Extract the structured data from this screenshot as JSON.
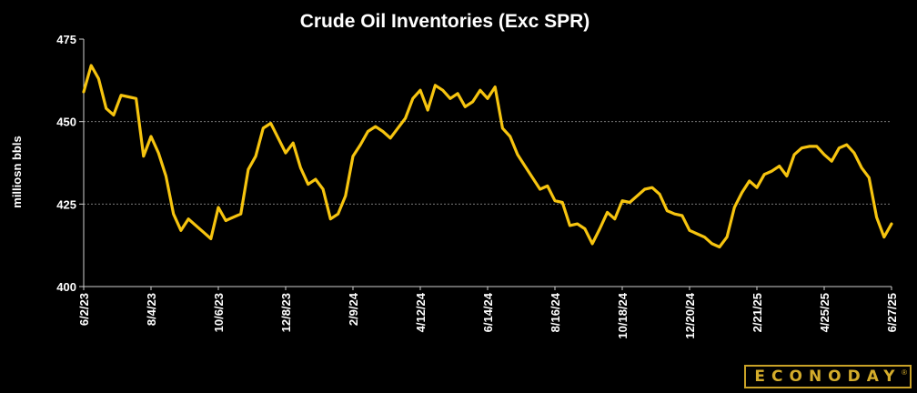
{
  "chart_data": {
    "type": "line",
    "title": "Crude Oil Inventories (Exc SPR)",
    "ylabel": "milliosn bbls",
    "xlabel": "",
    "ylim": [
      400,
      475
    ],
    "yticks": [
      400,
      425,
      450,
      475
    ],
    "grid": "horizontal dashed",
    "xtick_labels": [
      "6/2/23",
      "8/4/23",
      "10/6/23",
      "12/8/23",
      "2/9/24",
      "4/12/24",
      "6/14/24",
      "8/16/24",
      "10/18/24",
      "12/20/24",
      "2/21/25",
      "4/25/25",
      "6/27/25"
    ],
    "line_color": "#f6c40f",
    "series": [
      {
        "values": [
          459.0,
          467.0,
          463.0,
          454.0,
          452.0,
          458.0,
          457.5,
          457.0,
          439.5,
          445.5,
          440.5,
          433.5,
          422.0,
          417.0,
          420.5,
          418.5,
          416.5,
          414.5,
          424.0,
          420.0,
          421.0,
          422.0,
          435.5,
          439.5,
          448.0,
          449.5,
          445.0,
          440.5,
          443.5,
          436.0,
          431.0,
          432.5,
          429.5,
          420.5,
          422.0,
          427.5,
          439.5,
          443.0,
          447.0,
          448.5,
          447.0,
          445.0,
          448.0,
          451.0,
          457.0,
          459.5,
          453.5,
          461.0,
          459.5,
          457.0,
          458.5,
          454.5,
          456.0,
          459.5,
          457.0,
          460.5,
          448.0,
          445.5,
          440.0,
          436.5,
          433.0,
          429.5,
          430.5,
          426.0,
          425.5,
          418.5,
          419.0,
          417.5,
          413.0,
          417.5,
          422.5,
          420.5,
          426.0,
          425.5,
          427.5,
          429.5,
          430.0,
          428.0,
          423.0,
          422.0,
          421.5,
          417.0,
          416.0,
          415.0,
          413.0,
          412.0,
          415.0,
          424.0,
          428.5,
          432.0,
          430.0,
          434.0,
          435.0,
          436.5,
          433.5,
          440.0,
          442.0,
          442.5,
          442.5,
          440.0,
          438.0,
          442.0,
          443.0,
          440.5,
          436.0,
          433.0,
          421.0,
          415.0,
          419.0
        ]
      }
    ]
  },
  "logo": {
    "text": "ECONODAY",
    "mark": "®"
  }
}
